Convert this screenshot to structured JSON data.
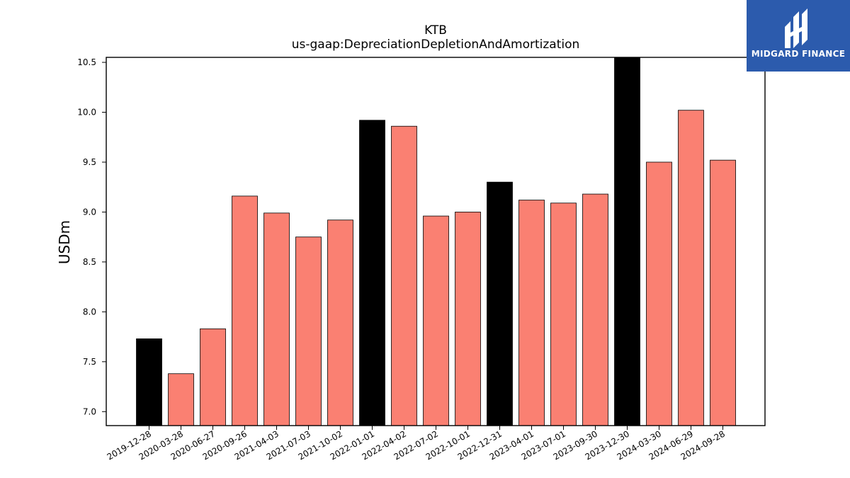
{
  "chart_data": {
    "type": "bar",
    "title": "KTB",
    "subtitle": "us-gaap:DepreciationDepletionAndAmortization",
    "xlabel": "",
    "ylabel": "USDm",
    "ylim": [
      6.86,
      10.55
    ],
    "yticks": [
      "7.0",
      "7.5",
      "8.0",
      "8.5",
      "9.0",
      "9.5",
      "10.0",
      "10.5"
    ],
    "categories": [
      "2019-12-28",
      "2020-03-28",
      "2020-06-27",
      "2020-09-26",
      "2021-04-03",
      "2021-07-03",
      "2021-10-02",
      "2022-01-01",
      "2022-04-02",
      "2022-07-02",
      "2022-10-01",
      "2022-12-31",
      "2023-04-01",
      "2023-07-01",
      "2023-09-30",
      "2023-12-30",
      "2024-03-30",
      "2024-06-29",
      "2024-09-28"
    ],
    "values": [
      7.73,
      7.38,
      7.83,
      9.16,
      8.99,
      8.75,
      8.92,
      9.92,
      9.86,
      8.96,
      9.0,
      9.3,
      9.12,
      9.09,
      9.18,
      10.57,
      9.5,
      10.02,
      9.52
    ],
    "highlight": [
      true,
      false,
      false,
      false,
      false,
      false,
      false,
      true,
      false,
      false,
      false,
      true,
      false,
      false,
      false,
      true,
      false,
      false,
      false
    ],
    "colors": {
      "bar": "#fa8072",
      "highlight": "#000000",
      "edge": "#000000"
    },
    "grid": false
  },
  "logo": {
    "text": "MIDGARD FINANCE",
    "background": "#2c5bad"
  }
}
